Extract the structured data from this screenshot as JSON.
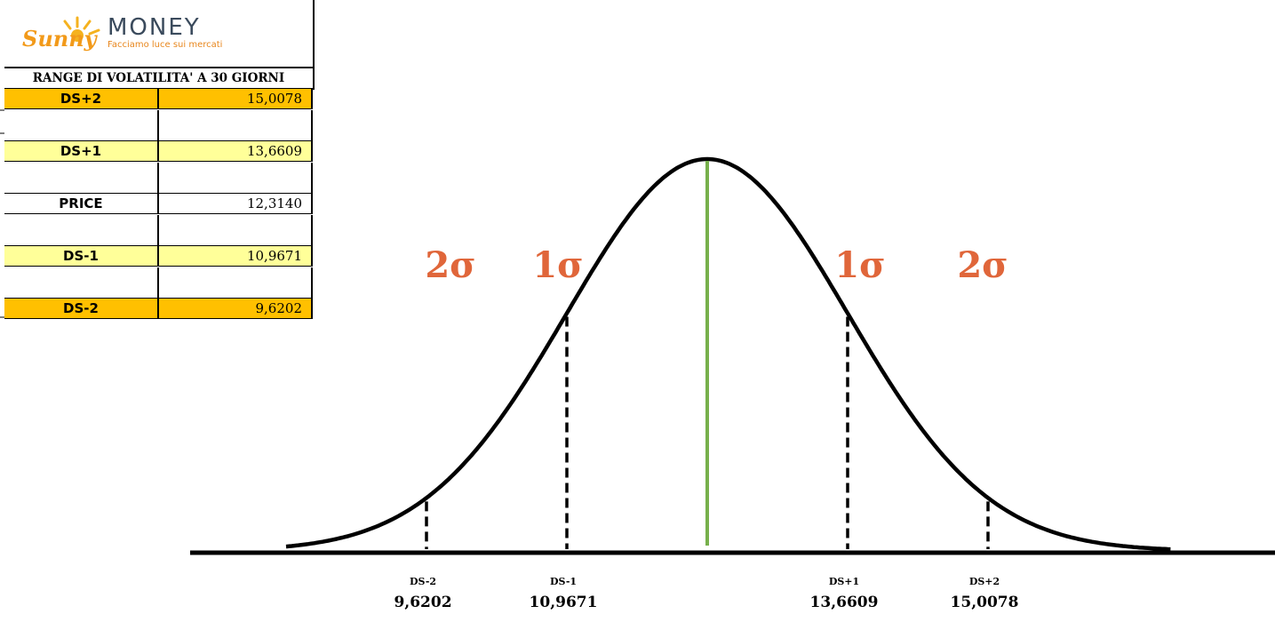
{
  "brand": {
    "name_script": "Sunny",
    "name_main": "MONEY",
    "tagline": "Facciamo luce sui mercati"
  },
  "table": {
    "header": "RANGE DI VOLATILITA' A 30 GIORNI",
    "rows": [
      {
        "label": "DS+2",
        "value": "15,0078",
        "color": "#ffc000"
      },
      {
        "label": "",
        "value": "",
        "color": "#ffffff"
      },
      {
        "label": "DS+1",
        "value": "13,6609",
        "color": "#ffff99"
      },
      {
        "label": "",
        "value": "",
        "color": "#ffffff"
      },
      {
        "label": "PRICE",
        "value": "12,3140",
        "color": "#ffffff"
      },
      {
        "label": "",
        "value": "",
        "color": "#ffffff"
      },
      {
        "label": "DS-1",
        "value": "10,9671",
        "color": "#ffff99"
      },
      {
        "label": "",
        "value": "",
        "color": "#ffffff"
      },
      {
        "label": "DS-2",
        "value": "9,6202",
        "color": "#ffc000"
      }
    ]
  },
  "chart_data": {
    "type": "line",
    "title": "",
    "xlabel": "",
    "ylabel": "",
    "mean": 12.314,
    "std": 1.3469,
    "curve": "normal distribution bell curve",
    "sigma_labels": [
      {
        "side": "left",
        "text": "2σ"
      },
      {
        "side": "left",
        "text": "1σ"
      },
      {
        "side": "right",
        "text": "1σ"
      },
      {
        "side": "right",
        "text": "2σ"
      }
    ],
    "markers": [
      {
        "name": "DS-2",
        "label": "DS-2",
        "value_text": "9,6202",
        "value": 9.6202,
        "sigma": -2
      },
      {
        "name": "DS-1",
        "label": "DS-1",
        "value_text": "10,9671",
        "value": 10.9671,
        "sigma": -1
      },
      {
        "name": "PRICE",
        "label": "",
        "value_text": "",
        "value": 12.314,
        "sigma": 0
      },
      {
        "name": "DS+1",
        "label": "DS+1",
        "value_text": "13,6609",
        "value": 13.6609,
        "sigma": 1
      },
      {
        "name": "DS+2",
        "label": "DS+2",
        "value_text": "15,0078",
        "value": 15.0078,
        "sigma": 2
      }
    ],
    "colors": {
      "curve": "#000000",
      "mean_line": "#77b04c",
      "sigma_text": "#e0663a"
    }
  }
}
